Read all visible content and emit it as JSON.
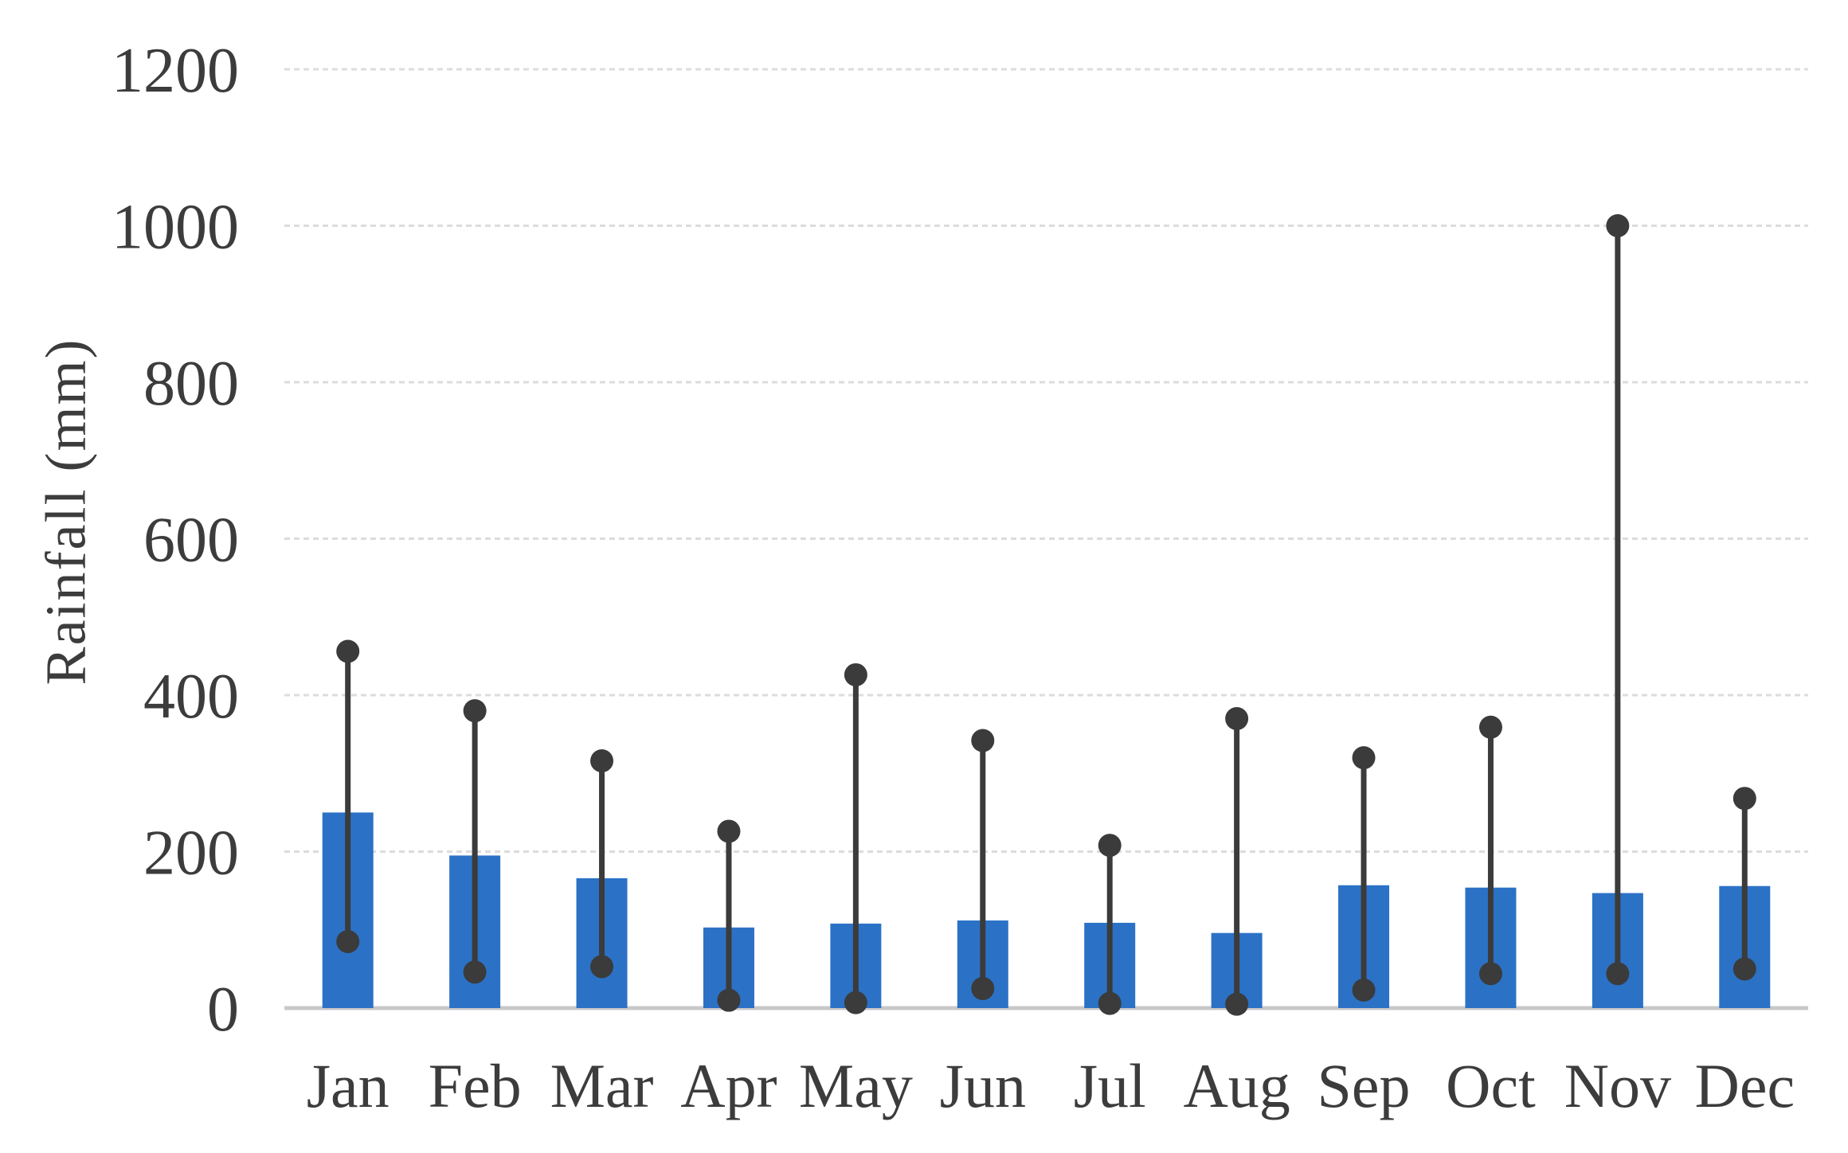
{
  "chart_data": {
    "type": "bar",
    "title": "",
    "xlabel": "",
    "ylabel": "Rainfall  (mm)",
    "categories": [
      "Jan",
      "Feb",
      "Mar",
      "Apr",
      "May",
      "Jun",
      "Jul",
      "Aug",
      "Sep",
      "Oct",
      "Nov",
      "Dec"
    ],
    "series": [
      {
        "name": "bar",
        "type": "bar",
        "values": [
          250,
          195,
          166,
          103,
          108,
          112,
          109,
          96,
          157,
          154,
          147,
          156
        ]
      },
      {
        "name": "upper_dot",
        "type": "point",
        "values": [
          456,
          380,
          316,
          226,
          426,
          342,
          208,
          370,
          320,
          359,
          1000,
          268
        ]
      },
      {
        "name": "lower_dot",
        "type": "point",
        "values": [
          85,
          46,
          53,
          10,
          7,
          25,
          6,
          5,
          23,
          44,
          44,
          50
        ]
      }
    ],
    "range_lines": "lower_dot-to-upper_dot",
    "ylim": [
      0,
      1200
    ],
    "yticks": [
      0,
      200,
      400,
      600,
      800,
      1000,
      1200
    ],
    "grid": "horizontal-dashed",
    "legend_position": "none",
    "colors": {
      "bar": "#2b72c6",
      "range": "#3b3b3b",
      "gridline": "#dcdcdc",
      "axis_line": "#c8c8c8",
      "text": "#3c3c3c"
    }
  }
}
